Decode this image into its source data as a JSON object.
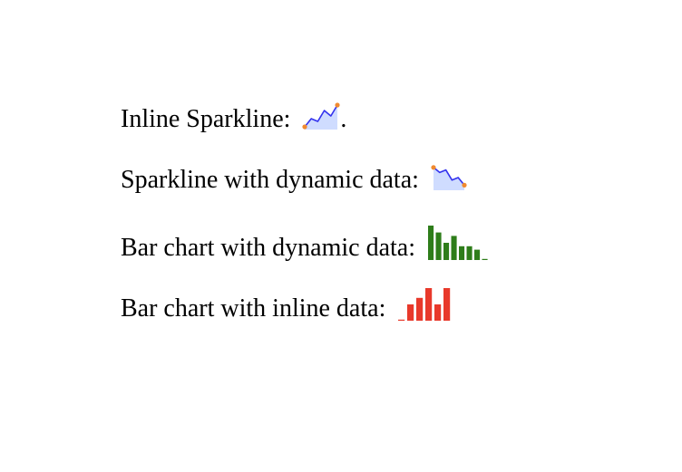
{
  "rows": [
    {
      "label": "Inline Sparkline:",
      "suffix": "."
    },
    {
      "label": "Sparkline with dynamic data:",
      "suffix": ""
    },
    {
      "label": "Bar chart with dynamic data:",
      "suffix": ""
    },
    {
      "label": "Bar chart with inline data:",
      "suffix": ""
    }
  ],
  "colors": {
    "sparkline_line": "#3333ee",
    "sparkline_fill": "#cfdcff",
    "sparkline_endpoint": "#f08a30",
    "bar_green": "#2e7d1a",
    "bar_red": "#e8392b"
  },
  "chart_data": [
    {
      "type": "line",
      "values": [
        1,
        4,
        3,
        7,
        5,
        9
      ],
      "ylim": [
        0,
        10
      ],
      "endpoints": "marked"
    },
    {
      "type": "line",
      "values": [
        9,
        7,
        8,
        4,
        5,
        2
      ],
      "ylim": [
        0,
        10
      ],
      "endpoints": "marked"
    },
    {
      "type": "bar",
      "values": [
        10,
        8,
        5,
        7,
        4,
        4,
        3,
        0
      ],
      "ylim": [
        0,
        10
      ]
    },
    {
      "type": "bar",
      "values": [
        0,
        5,
        7,
        10,
        5,
        10
      ],
      "ylim": [
        0,
        10
      ]
    }
  ]
}
